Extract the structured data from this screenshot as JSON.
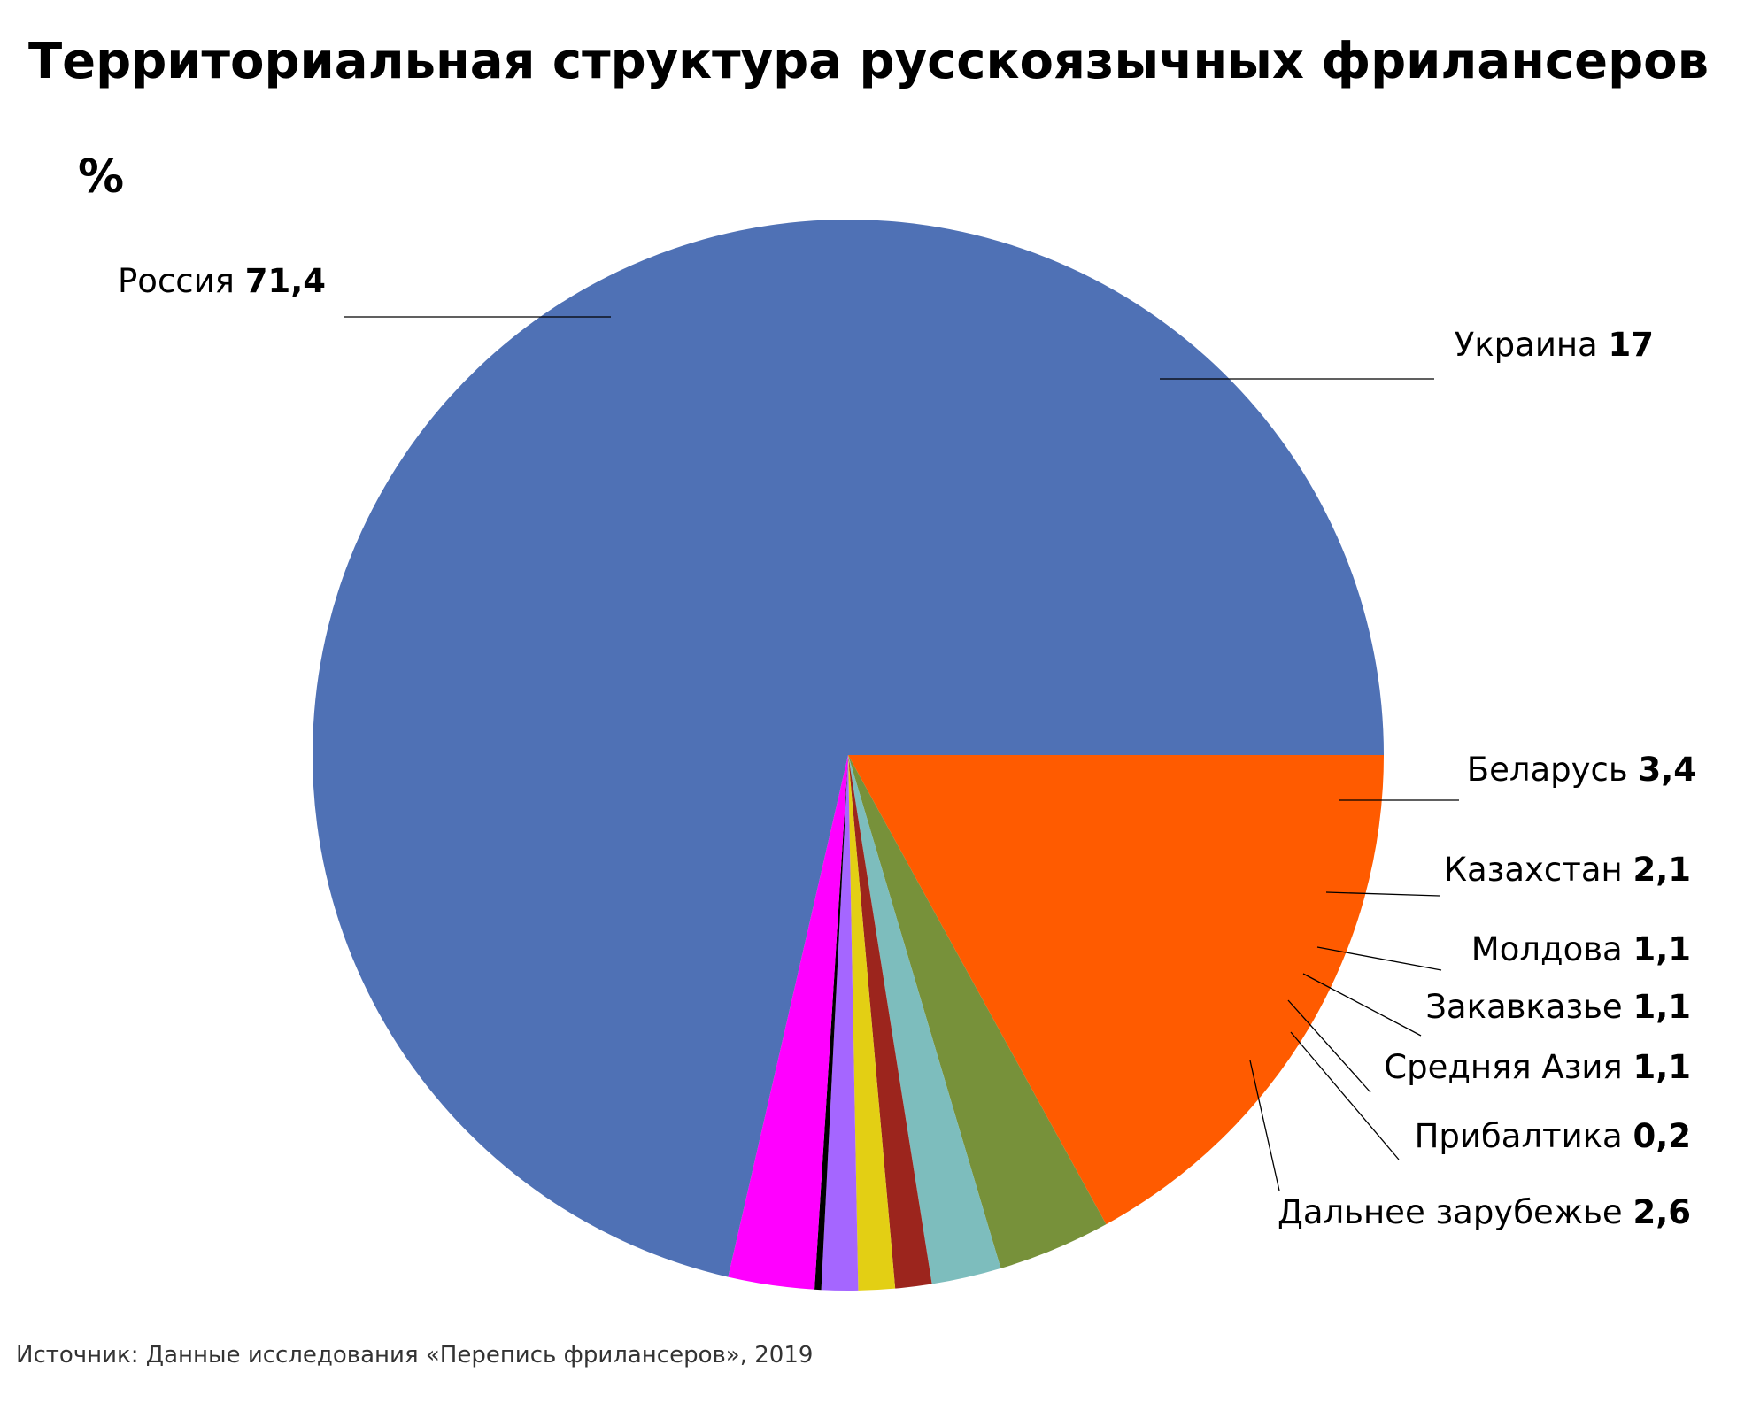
{
  "chart_data": {
    "type": "pie",
    "title": "Территориальная структура русскоязычных фрилансеров",
    "unit": "%",
    "source": "Источник: Данные исследования «Перепись фрилансеров», 2019",
    "slices": [
      {
        "label": "Украина",
        "value_text": "17",
        "value": 17,
        "color": "#ff5b00"
      },
      {
        "label": "Беларусь",
        "value_text": "3,4",
        "value": 3.4,
        "color": "#77913a"
      },
      {
        "label": "Казахстан",
        "value_text": "2,1",
        "value": 2.1,
        "color": "#7dbdbd"
      },
      {
        "label": "Молдова",
        "value_text": "1,1",
        "value": 1.1,
        "color": "#9c251d"
      },
      {
        "label": "Закавказье",
        "value_text": "1,1",
        "value": 1.1,
        "color": "#e3cf14"
      },
      {
        "label": "Средняя Азия",
        "value_text": "1,1",
        "value": 1.1,
        "color": "#a566ff"
      },
      {
        "label": "Прибалтика",
        "value_text": "0,2",
        "value": 0.2,
        "color": "#000000"
      },
      {
        "label": "Дальнее зарубежье",
        "value_text": "2,6",
        "value": 2.6,
        "color": "#ff00ff"
      },
      {
        "label": "Россия",
        "value_text": "71,4",
        "value": 71.4,
        "color": "#4f71b5"
      }
    ]
  }
}
